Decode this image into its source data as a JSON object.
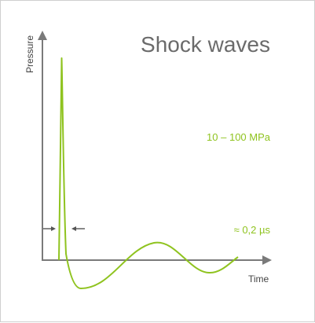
{
  "colors": {
    "accent": "#8fc31f",
    "axis": "#7a7a7a",
    "title": "#6b6b6b",
    "label": "#444444",
    "marker": "#555555",
    "border": "#cfcfcf"
  },
  "chart_data": {
    "type": "line",
    "title": "Shock waves",
    "xlabel": "Time",
    "ylabel": "Pressure",
    "grid": false,
    "annotations": {
      "peak_pressure": "10 – 100 MPa",
      "pulse_width": "≈ 0,2 µs"
    }
  }
}
